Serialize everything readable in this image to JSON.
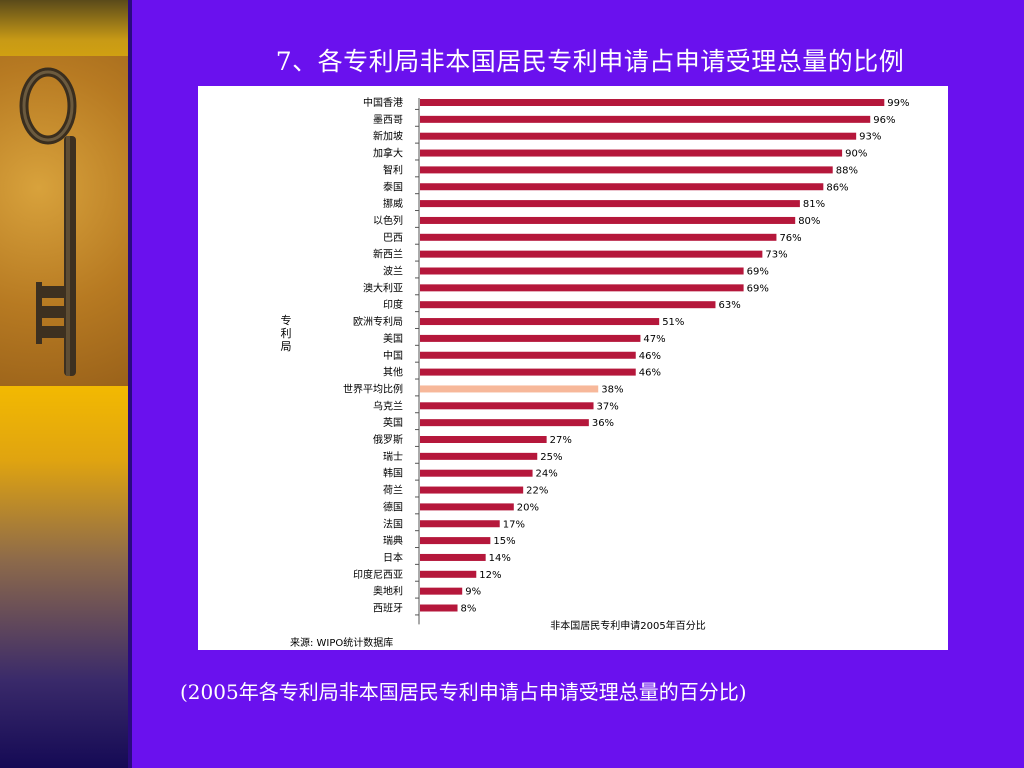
{
  "slide": {
    "title": "7、各专利局非本国居民专利申请占申请受理总量的比例",
    "caption": "(2005年各专利局非本国居民专利申请占申请受理总量的百分比)",
    "source_note": "来源: WIPO统计数据库",
    "bar_color": "#b5173b",
    "highlight_color": "#f7b89a",
    "background_color": "#6a11ee"
  },
  "chart_data": {
    "type": "bar",
    "orientation": "horizontal",
    "xlabel": "非本国居民专利申请2005年百分比",
    "ylabel": "专利局",
    "xlim": [
      0,
      100
    ],
    "highlight_category": "世界平均比例",
    "categories": [
      "中国香港",
      "墨西哥",
      "新加坡",
      "加拿大",
      "智利",
      "泰国",
      "挪威",
      "以色列",
      "巴西",
      "新西兰",
      "波兰",
      "澳大利亚",
      "印度",
      "欧洲专利局",
      "美国",
      "中国",
      "其他",
      "世界平均比例",
      "乌克兰",
      "英国",
      "俄罗斯",
      "瑞士",
      "韩国",
      "荷兰",
      "德国",
      "法国",
      "瑞典",
      "日本",
      "印度尼西亚",
      "奥地利",
      "西班牙"
    ],
    "values": [
      99,
      96,
      93,
      90,
      88,
      86,
      81,
      80,
      76,
      73,
      69,
      69,
      63,
      51,
      47,
      46,
      46,
      38,
      37,
      36,
      27,
      25,
      24,
      22,
      20,
      17,
      15,
      14,
      12,
      9,
      8
    ],
    "value_labels": [
      "99%",
      "96%",
      "93%",
      "90%",
      "88%",
      "86%",
      "81%",
      "80%",
      "76%",
      "73%",
      "69%",
      "69%",
      "63%",
      "51%",
      "47%",
      "46%",
      "46%",
      "38%",
      "37%",
      "36%",
      "27%",
      "25%",
      "24%",
      "22%",
      "20%",
      "17%",
      "15%",
      "14%",
      "12%",
      "9%",
      "8%"
    ]
  }
}
